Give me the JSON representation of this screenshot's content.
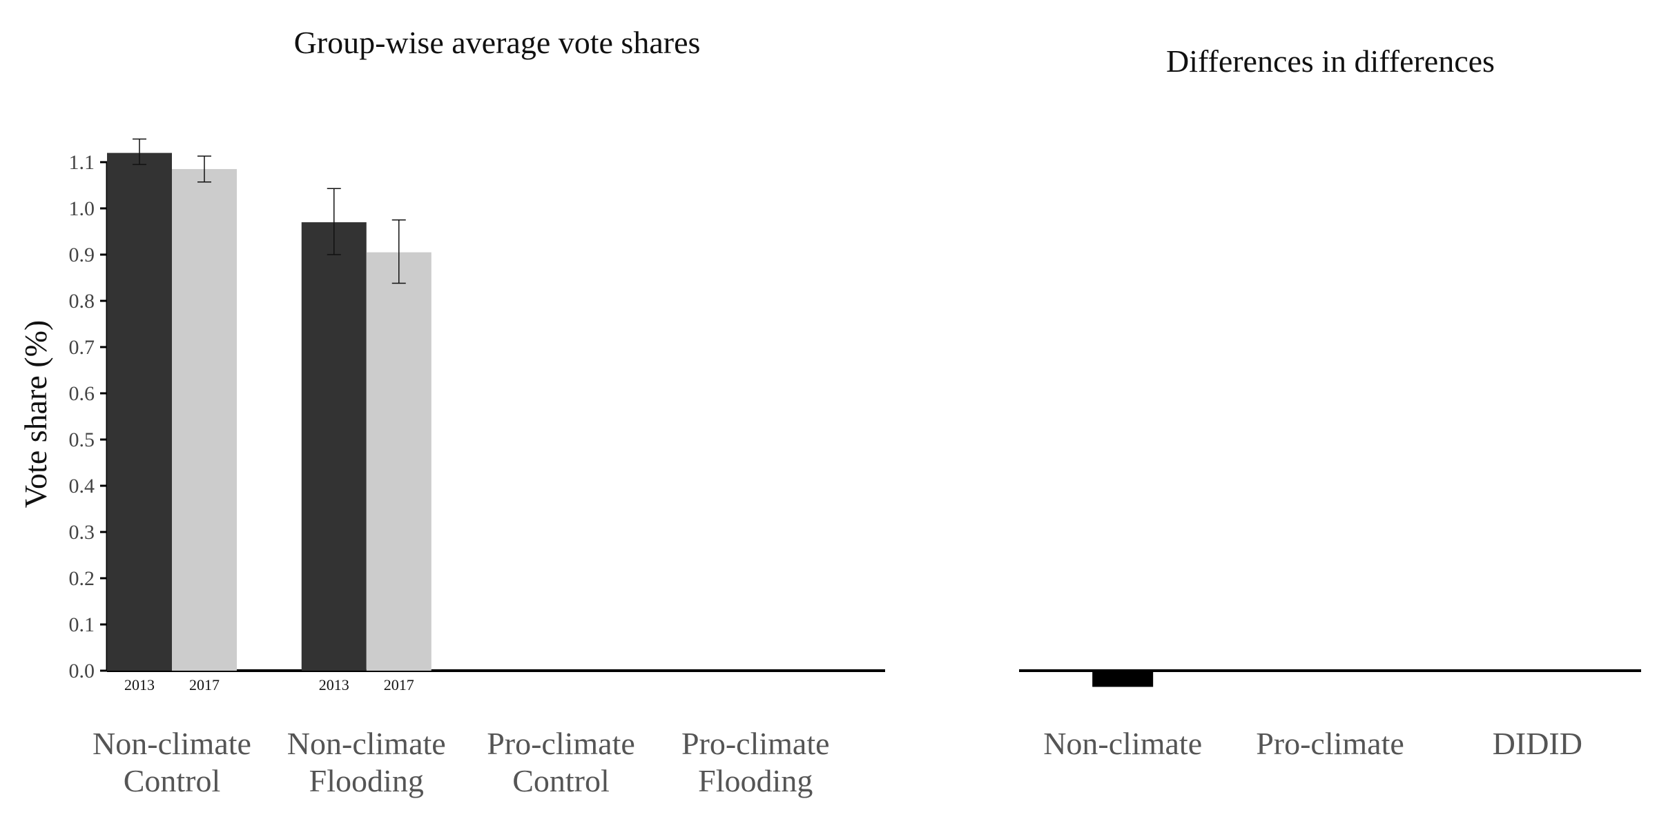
{
  "chart_data": [
    {
      "type": "bar",
      "title": "Group-wise average vote shares",
      "xlabel": "",
      "ylabel": "Vote share (%)",
      "ylim": [
        0,
        1.1
      ],
      "yticks": [
        "0.0",
        "0.1",
        "0.2",
        "0.3",
        "0.4",
        "0.5",
        "0.6",
        "0.7",
        "0.8",
        "0.9",
        "1.0",
        "1.1"
      ],
      "categories": [
        [
          "Non-climate",
          "Control"
        ],
        [
          "Non-climate",
          "Flooding"
        ],
        [
          "Pro-climate",
          "Control"
        ],
        [
          "Pro-climate",
          "Flooding"
        ]
      ],
      "bars": [
        {
          "group": 0,
          "slot": 0,
          "year": "2013",
          "value": 1.12,
          "err_low": 1.095,
          "err_high": 1.15,
          "color": "#333333"
        },
        {
          "group": 0,
          "slot": 1,
          "year": "2017",
          "value": 1.085,
          "err_low": 1.057,
          "err_high": 1.113,
          "color": "#cccccc"
        },
        {
          "group": 1,
          "slot": 0,
          "year": "2013",
          "value": 0.97,
          "err_low": 0.9,
          "err_high": 1.043,
          "color": "#333333"
        },
        {
          "group": 1,
          "slot": 1,
          "year": "2017",
          "value": 0.905,
          "err_low": 0.838,
          "err_high": 0.975,
          "color": "#cccccc"
        }
      ],
      "grid": false,
      "legend": "none"
    },
    {
      "type": "bar",
      "title": "Differences in differences",
      "xlabel": "",
      "ylabel": "",
      "categories": [
        "Non-climate",
        "Pro-climate",
        "DIDID"
      ],
      "values": [
        -0.035,
        0,
        0
      ],
      "color": "#000000",
      "grid": false,
      "legend": "none"
    }
  ]
}
